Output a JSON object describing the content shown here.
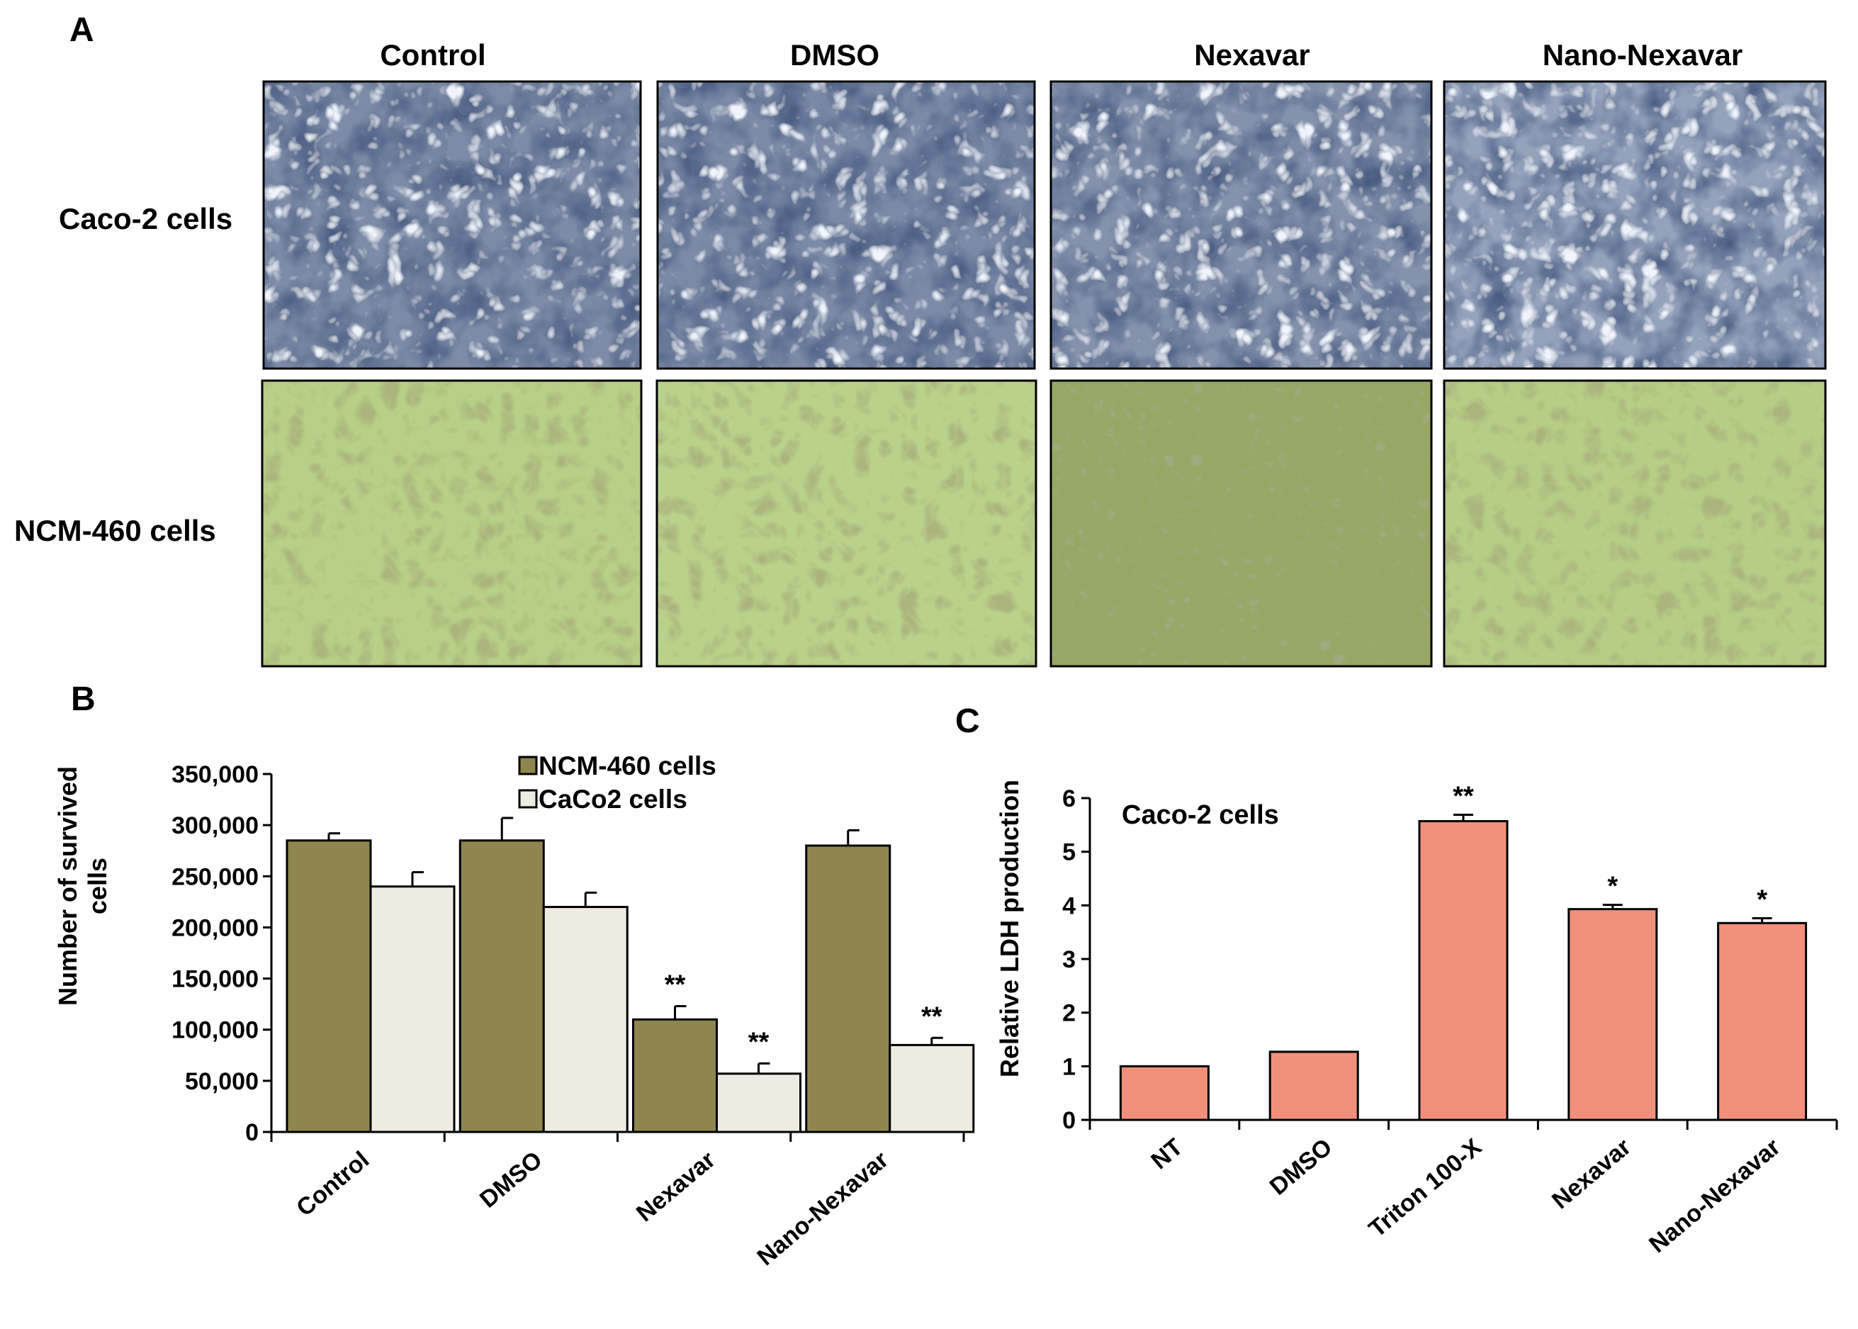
{
  "figure": {
    "panel_a": {
      "label": "A",
      "columns": [
        "Control",
        "DMSO",
        "Nexavar",
        "Nano-Nexavar"
      ],
      "rows": [
        "Caco-2 cells",
        "NCM-460 cells"
      ]
    },
    "panel_b": {
      "label": "B"
    },
    "panel_c": {
      "label": "C"
    }
  },
  "chart_data": [
    {
      "type": "bar",
      "panel": "B",
      "title": "",
      "xlabel": "",
      "ylabel": "Number of survived cells",
      "ylabel_lines": [
        "Number of survived",
        "cells"
      ],
      "ylim": [
        0,
        350000
      ],
      "yticks": [
        0,
        50000,
        100000,
        150000,
        200000,
        250000,
        300000,
        350000
      ],
      "ytick_labels": [
        "0",
        "50,000",
        "100,000",
        "150,000",
        "200,000",
        "250,000",
        "300,000",
        "350,000"
      ],
      "categories": [
        "Control",
        "DMSO",
        "Nexavar",
        "Nano-Nexavar"
      ],
      "series": [
        {
          "name": "NCM-460 cells",
          "color": "#8f864f",
          "values": [
            285000,
            285000,
            110000,
            280000
          ],
          "errors": [
            7000,
            22000,
            13000,
            15000
          ],
          "annotations": [
            "",
            "",
            "**",
            ""
          ]
        },
        {
          "name": "CaCo2 cells",
          "color": "#eeebe0",
          "values": [
            240000,
            220000,
            57000,
            85000
          ],
          "errors": [
            14000,
            14000,
            10000,
            7000
          ],
          "annotations": [
            "",
            "",
            "**",
            "**"
          ]
        }
      ],
      "legend": "top-center"
    },
    {
      "type": "bar",
      "panel": "C",
      "title": "",
      "annotation": "Caco-2 cells",
      "xlabel": "",
      "ylabel": "Relative LDH production",
      "ylim": [
        0,
        6
      ],
      "yticks": [
        0,
        1,
        2,
        3,
        4,
        5,
        6
      ],
      "ytick_labels": [
        "0",
        "1",
        "2",
        "3",
        "4",
        "5",
        "6"
      ],
      "categories": [
        "NT",
        "DMSO",
        "Triton 100-X",
        "Nexavar",
        "Nano-Nexavar"
      ],
      "series": [
        {
          "name": "Relative LDH production",
          "color": "#f0907a",
          "values": [
            1.0,
            1.27,
            5.57,
            3.93,
            3.67
          ],
          "errors": [
            0,
            0,
            0.12,
            0.08,
            0.09
          ],
          "annotations": [
            "",
            "",
            "**",
            "*",
            "*"
          ]
        }
      ]
    }
  ]
}
